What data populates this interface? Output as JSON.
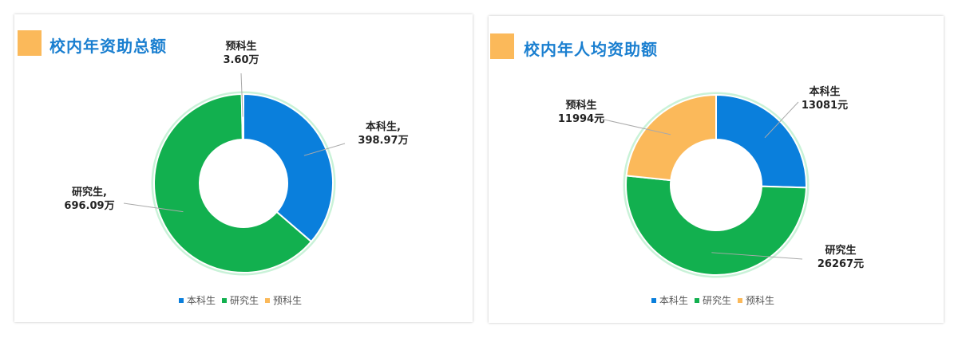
{
  "chart_data": [
    {
      "type": "pie",
      "title": "校内年资助总额",
      "categories": [
        "本科生",
        "研究生",
        "预科生"
      ],
      "values": [
        398.97,
        696.09,
        3.6
      ],
      "labels": [
        [
          "本科生,",
          "398.97万"
        ],
        [
          "研究生,",
          "696.09万"
        ],
        [
          "预科生",
          "3.60万"
        ]
      ],
      "unit": "万",
      "colors": [
        "#0a7fdc",
        "#12b04f",
        "#fbb95a"
      ],
      "donut": true,
      "legend": "bottom"
    },
    {
      "type": "pie",
      "title": "校内年人均资助额",
      "categories": [
        "本科生",
        "研究生",
        "预科生"
      ],
      "values": [
        13081,
        26267,
        11994
      ],
      "labels": [
        [
          "本科生",
          "13081元"
        ],
        [
          "研究生",
          "26267元"
        ],
        [
          "预科生",
          "11994元"
        ]
      ],
      "unit": "元",
      "colors": [
        "#0a7fdc",
        "#12b04f",
        "#fbb95a"
      ],
      "donut": true,
      "legend": "bottom"
    }
  ]
}
